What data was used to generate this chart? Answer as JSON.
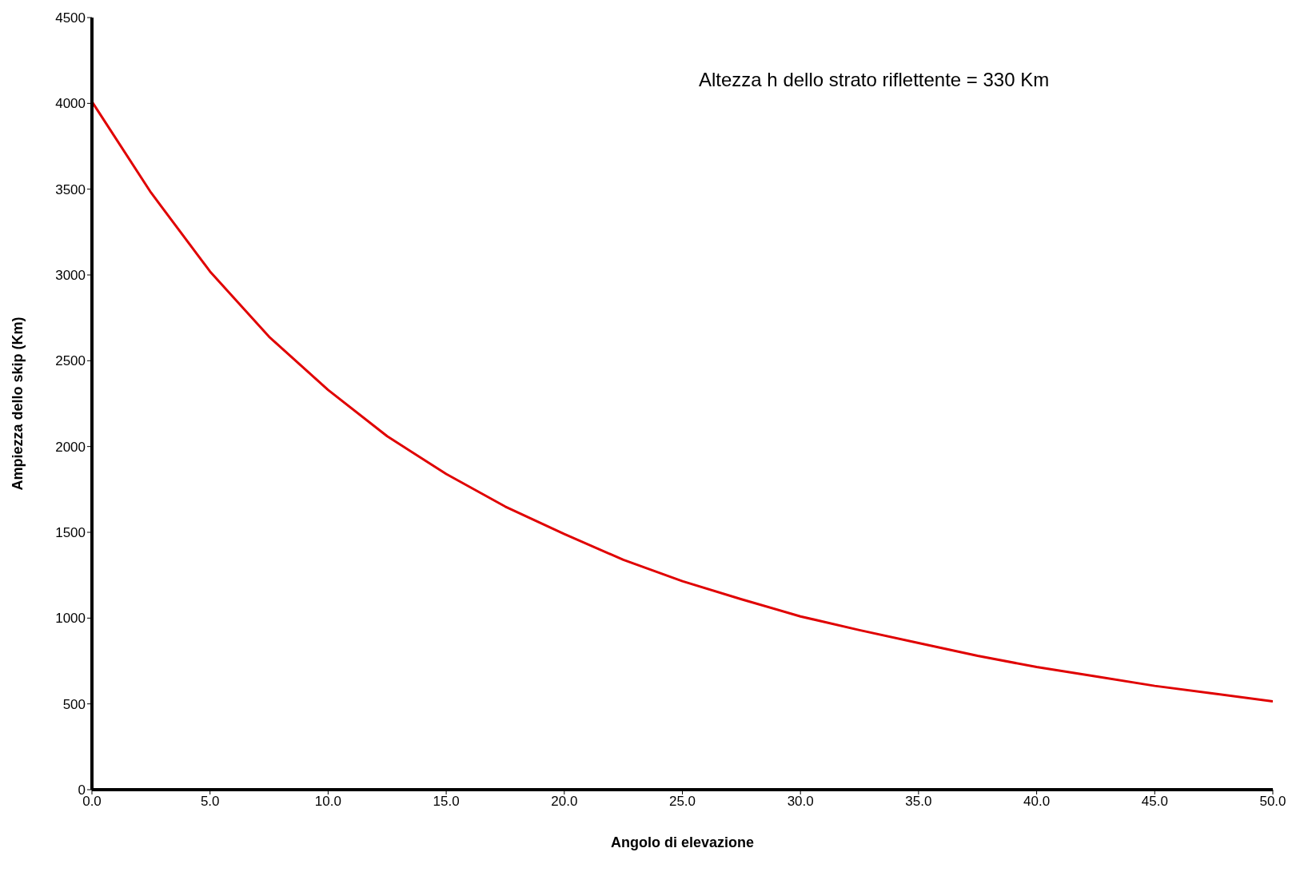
{
  "chart_data": {
    "type": "line",
    "xlabel": "Angolo di elevazione",
    "ylabel": "Ampiezza dello skip (Km)",
    "annotations": [
      "Altezza h dello strato riflettente = 330 Km"
    ],
    "x": [
      0,
      2.5,
      5,
      7.5,
      10,
      12.5,
      15,
      17.5,
      20,
      22.5,
      25,
      27.5,
      30,
      32.5,
      35,
      37.5,
      40,
      42.5,
      45,
      47.5,
      50
    ],
    "series": [
      {
        "color": "#e00000",
        "values": [
          4010,
          3480,
          3020,
          2640,
          2330,
          2060,
          1840,
          1650,
          1490,
          1340,
          1215,
          1110,
          1010,
          930,
          855,
          780,
          715,
          660,
          605,
          560,
          515
        ]
      }
    ],
    "xlim": [
      0,
      50
    ],
    "xticks": [
      {
        "value": 0,
        "label": "0.0"
      },
      {
        "value": 5,
        "label": "5.0"
      },
      {
        "value": 10,
        "label": "10.0"
      },
      {
        "value": 15,
        "label": "15.0"
      },
      {
        "value": 20,
        "label": "20.0"
      },
      {
        "value": 25,
        "label": "25.0"
      },
      {
        "value": 30,
        "label": "30.0"
      },
      {
        "value": 35,
        "label": "35.0"
      },
      {
        "value": 40,
        "label": "40.0"
      },
      {
        "value": 45,
        "label": "45.0"
      },
      {
        "value": 50,
        "label": "50.0"
      }
    ],
    "ylim": [
      0,
      4500
    ],
    "yticks": [
      0,
      500,
      1000,
      1500,
      2000,
      2500,
      3000,
      3500,
      4000,
      4500
    ],
    "grid": false,
    "legend": false,
    "marker": "none",
    "line_style": "solid"
  }
}
